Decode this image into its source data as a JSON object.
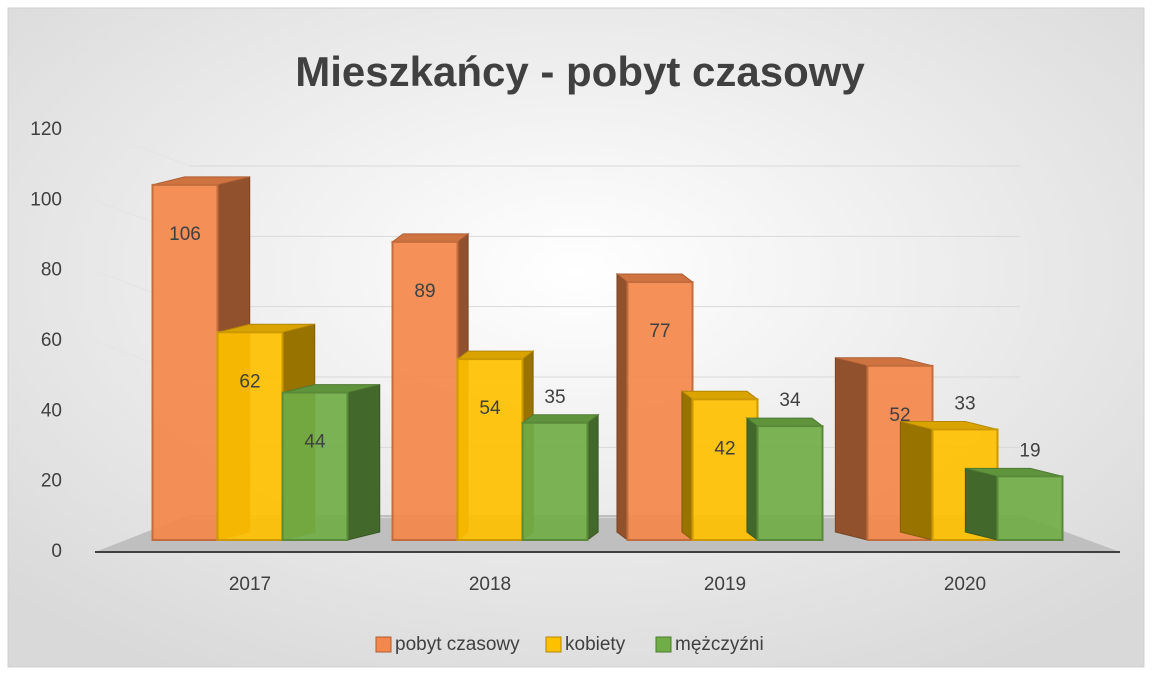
{
  "chart_data": {
    "type": "bar3d",
    "title": "Mieszkańcy - pobyt czasowy",
    "categories": [
      "2017",
      "2018",
      "2019",
      "2020"
    ],
    "series": [
      {
        "name": "pobyt czasowy",
        "color": "#f4874b",
        "values": [
          106,
          89,
          77,
          52
        ]
      },
      {
        "name": "kobiety",
        "color": "#ffc000",
        "values": [
          62,
          54,
          42,
          33
        ]
      },
      {
        "name": "mężczyźni",
        "color": "#70ad47",
        "values": [
          44,
          35,
          34,
          19
        ]
      }
    ],
    "ylim": [
      0,
      120
    ],
    "yticks": [
      0,
      20,
      40,
      60,
      80,
      100,
      120
    ],
    "grid": true,
    "legend": "bottom"
  }
}
